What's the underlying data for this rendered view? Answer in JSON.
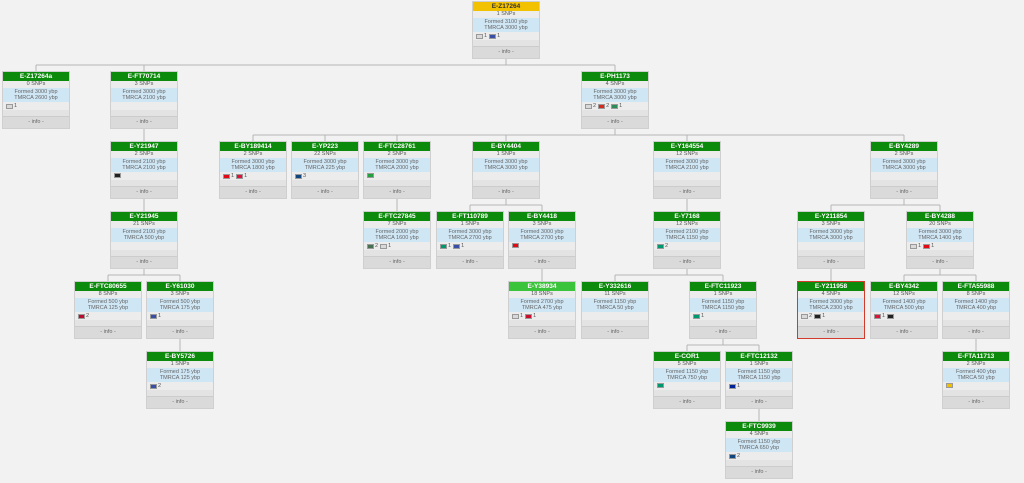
{
  "info_label": "- info -",
  "flag_colors": {
    "unknown": "#d9d9d9",
    "usa": "#3a4fa3",
    "gb": "#c8102e",
    "de": "#222222",
    "ru": "#d52b1e",
    "it": "#2e8b57",
    "tr": "#e30a17",
    "pl": "#dc143c",
    "cz": "#11457e",
    "ir": "#239f40",
    "hu": "#477050",
    "bg": "#00966e",
    "no": "#ba0c2f",
    "ba": "#002395",
    "es": "#f1bf00"
  },
  "nodes": [
    {
      "id": "n1",
      "label": "E-Z17264",
      "snps": "1 SNPs",
      "formed": "Formed 3100 ybp",
      "tmrca": "TMRCA 3000 ybp",
      "flags": [
        {
          "c": "unknown",
          "n": "1"
        },
        {
          "c": "usa",
          "n": "1"
        }
      ],
      "style": "root"
    },
    {
      "id": "n2",
      "label": "E-Z17264a",
      "snps": "0 SNPs",
      "formed": "Formed 3000 ybp",
      "tmrca": "TMRCA 2600 ybp",
      "flags": [
        {
          "c": "unknown",
          "n": "1"
        }
      ]
    },
    {
      "id": "n3",
      "label": "E-FT70714",
      "snps": "3 SNPs",
      "formed": "Formed 3000 ybp",
      "tmrca": "TMRCA 2100 ybp",
      "flags": []
    },
    {
      "id": "n4",
      "label": "E-PH1173",
      "snps": "4 SNPs",
      "formed": "Formed 3000 ybp",
      "tmrca": "TMRCA 3000 ybp",
      "flags": [
        {
          "c": "unknown",
          "n": "2"
        },
        {
          "c": "ru",
          "n": "2"
        },
        {
          "c": "it",
          "n": "1"
        }
      ]
    },
    {
      "id": "n5",
      "label": "E-Y21947",
      "snps": "2 SNPs",
      "formed": "Formed 2100 ybp",
      "tmrca": "TMRCA 2100 ybp",
      "flags": [
        {
          "c": "de",
          "n": ""
        }
      ]
    },
    {
      "id": "n6",
      "label": "E-BY189414",
      "snps": "2 SNPs",
      "formed": "Formed 3000 ybp",
      "tmrca": "TMRCA 1800 ybp",
      "flags": [
        {
          "c": "tr",
          "n": "1"
        },
        {
          "c": "pl",
          "n": "1"
        }
      ]
    },
    {
      "id": "n7",
      "label": "E-YP223",
      "snps": "22 SNPs",
      "formed": "Formed 3000 ybp",
      "tmrca": "TMRCA 225 ybp",
      "flags": [
        {
          "c": "cz",
          "n": "3"
        }
      ]
    },
    {
      "id": "n8",
      "label": "E-FTC28761",
      "snps": "2 SNPs",
      "formed": "Formed 3000 ybp",
      "tmrca": "TMRCA 2000 ybp",
      "flags": [
        {
          "c": "ir",
          "n": ""
        }
      ]
    },
    {
      "id": "n9",
      "label": "E-BY4404",
      "snps": "1 SNPs",
      "formed": "Formed 3000 ybp",
      "tmrca": "TMRCA 3000 ybp",
      "flags": []
    },
    {
      "id": "n10",
      "label": "E-Y164554",
      "snps": "12 SNPs",
      "formed": "Formed 3000 ybp",
      "tmrca": "TMRCA 2100 ybp",
      "flags": []
    },
    {
      "id": "n11",
      "label": "E-BY4289",
      "snps": "2 SNPs",
      "formed": "Formed 3000 ybp",
      "tmrca": "TMRCA 3000 ybp",
      "flags": []
    },
    {
      "id": "n12",
      "label": "E-Y21945",
      "snps": "21 SNPs",
      "formed": "Formed 2100 ybp",
      "tmrca": "TMRCA 500 ybp",
      "flags": []
    },
    {
      "id": "n13",
      "label": "E-FTC27845",
      "snps": "7 SNPs",
      "formed": "Formed 2000 ybp",
      "tmrca": "TMRCA 1600 ybp",
      "flags": [
        {
          "c": "hu",
          "n": "2"
        },
        {
          "c": "unknown",
          "n": "1"
        }
      ]
    },
    {
      "id": "n14",
      "label": "E-FT110789",
      "snps": "1 SNPs",
      "formed": "Formed 3000 ybp",
      "tmrca": "TMRCA 2700 ybp",
      "flags": [
        {
          "c": "bg",
          "n": "1"
        },
        {
          "c": "usa",
          "n": "1"
        }
      ]
    },
    {
      "id": "n15",
      "label": "E-BY4418",
      "snps": "3 SNPs",
      "formed": "Formed 3000 ybp",
      "tmrca": "TMRCA 2700 ybp",
      "flags": [
        {
          "c": "tr",
          "n": ""
        }
      ]
    },
    {
      "id": "n16",
      "label": "E-Y7168",
      "snps": "12 SNPs",
      "formed": "Formed 2100 ybp",
      "tmrca": "TMRCA 1150 ybp",
      "flags": [
        {
          "c": "bg",
          "n": "2"
        }
      ]
    },
    {
      "id": "n17",
      "label": "E-Y211854",
      "snps": "3 SNPs",
      "formed": "Formed 3000 ybp",
      "tmrca": "TMRCA 3000 ybp",
      "flags": []
    },
    {
      "id": "n18",
      "label": "E-BY4288",
      "snps": "20 SNPs",
      "formed": "Formed 3000 ybp",
      "tmrca": "TMRCA 1400 ybp",
      "flags": [
        {
          "c": "unknown",
          "n": "1"
        },
        {
          "c": "tr",
          "n": "1"
        }
      ]
    },
    {
      "id": "n19",
      "label": "E-FTC80655",
      "snps": "8 SNPs",
      "formed": "Formed 500 ybp",
      "tmrca": "TMRCA 125 ybp",
      "flags": [
        {
          "c": "no",
          "n": "2"
        }
      ]
    },
    {
      "id": "n20",
      "label": "E-Y61030",
      "snps": "3 SNPs",
      "formed": "Formed 500 ybp",
      "tmrca": "TMRCA 175 ybp",
      "flags": [
        {
          "c": "usa",
          "n": "1"
        }
      ]
    },
    {
      "id": "n21",
      "label": "E-Y38934",
      "snps": "18 SNPs",
      "formed": "Formed 2700 ybp",
      "tmrca": "TMRCA 475 ybp",
      "flags": [
        {
          "c": "unknown",
          "n": "1"
        },
        {
          "c": "gb",
          "n": "1"
        }
      ],
      "style": "highlight"
    },
    {
      "id": "n22",
      "label": "E-Y332616",
      "snps": "11 SNPs",
      "formed": "Formed 1150 ybp",
      "tmrca": "TMRCA 50 ybp",
      "flags": []
    },
    {
      "id": "n23",
      "label": "E-FTC11923",
      "snps": "1 SNPs",
      "formed": "Formed 1150 ybp",
      "tmrca": "TMRCA 1150 ybp",
      "flags": [
        {
          "c": "bg",
          "n": "1"
        }
      ]
    },
    {
      "id": "n24",
      "label": "E-Y211958",
      "snps": "4 SNPs",
      "formed": "Formed 3000 ybp",
      "tmrca": "TMRCA 2300 ybp",
      "flags": [
        {
          "c": "unknown",
          "n": "2"
        },
        {
          "c": "de",
          "n": "1"
        }
      ],
      "style": "selected"
    },
    {
      "id": "n25",
      "label": "E-BY4342",
      "snps": "12 SNPs",
      "formed": "Formed 1400 ybp",
      "tmrca": "TMRCA 500 ybp",
      "flags": [
        {
          "c": "pl",
          "n": "1"
        },
        {
          "c": "de",
          "n": ""
        }
      ]
    },
    {
      "id": "n26",
      "label": "E-FTA55988",
      "snps": "8 SNPs",
      "formed": "Formed 1400 ybp",
      "tmrca": "TMRCA 400 ybp",
      "flags": []
    },
    {
      "id": "n27",
      "label": "E-BY5726",
      "snps": "1 SNPs",
      "formed": "Formed 175 ybp",
      "tmrca": "TMRCA 125 ybp",
      "flags": [
        {
          "c": "usa",
          "n": "2"
        }
      ]
    },
    {
      "id": "n28",
      "label": "E-COR1",
      "snps": "5 SNPs",
      "formed": "Formed 1150 ybp",
      "tmrca": "TMRCA 750 ybp",
      "flags": [
        {
          "c": "bg",
          "n": ""
        }
      ]
    },
    {
      "id": "n29",
      "label": "E-FTC12132",
      "snps": "1 SNPs",
      "formed": "Formed 1150 ybp",
      "tmrca": "TMRCA 1150 ybp",
      "flags": [
        {
          "c": "ba",
          "n": "1"
        }
      ]
    },
    {
      "id": "n30",
      "label": "E-FTA11713",
      "snps": "2 SNPs",
      "formed": "Formed 400 ybp",
      "tmrca": "TMRCA 50 ybp",
      "flags": [
        {
          "c": "es",
          "n": ""
        }
      ]
    },
    {
      "id": "n31",
      "label": "E-FTC9939",
      "snps": "4 SNPs",
      "formed": "Formed 1150 ybp",
      "tmrca": "TMRCA 650 ybp",
      "flags": [
        {
          "c": "cz",
          "n": "2"
        }
      ]
    }
  ],
  "edges": [
    [
      "n1",
      "n2"
    ],
    [
      "n1",
      "n3"
    ],
    [
      "n1",
      "n4"
    ],
    [
      "n3",
      "n5"
    ],
    [
      "n5",
      "n12"
    ],
    [
      "n12",
      "n19"
    ],
    [
      "n12",
      "n20"
    ],
    [
      "n20",
      "n27"
    ],
    [
      "n4",
      "n6"
    ],
    [
      "n4",
      "n7"
    ],
    [
      "n4",
      "n8"
    ],
    [
      "n4",
      "n9"
    ],
    [
      "n4",
      "n10"
    ],
    [
      "n4",
      "n11"
    ],
    [
      "n8",
      "n13"
    ],
    [
      "n9",
      "n14"
    ],
    [
      "n9",
      "n15"
    ],
    [
      "n15",
      "n21"
    ],
    [
      "n10",
      "n16"
    ],
    [
      "n16",
      "n22"
    ],
    [
      "n16",
      "n23"
    ],
    [
      "n23",
      "n28"
    ],
    [
      "n23",
      "n29"
    ],
    [
      "n29",
      "n31"
    ],
    [
      "n11",
      "n17"
    ],
    [
      "n11",
      "n18"
    ],
    [
      "n17",
      "n24"
    ],
    [
      "n18",
      "n25"
    ],
    [
      "n18",
      "n26"
    ],
    [
      "n26",
      "n30"
    ]
  ]
}
